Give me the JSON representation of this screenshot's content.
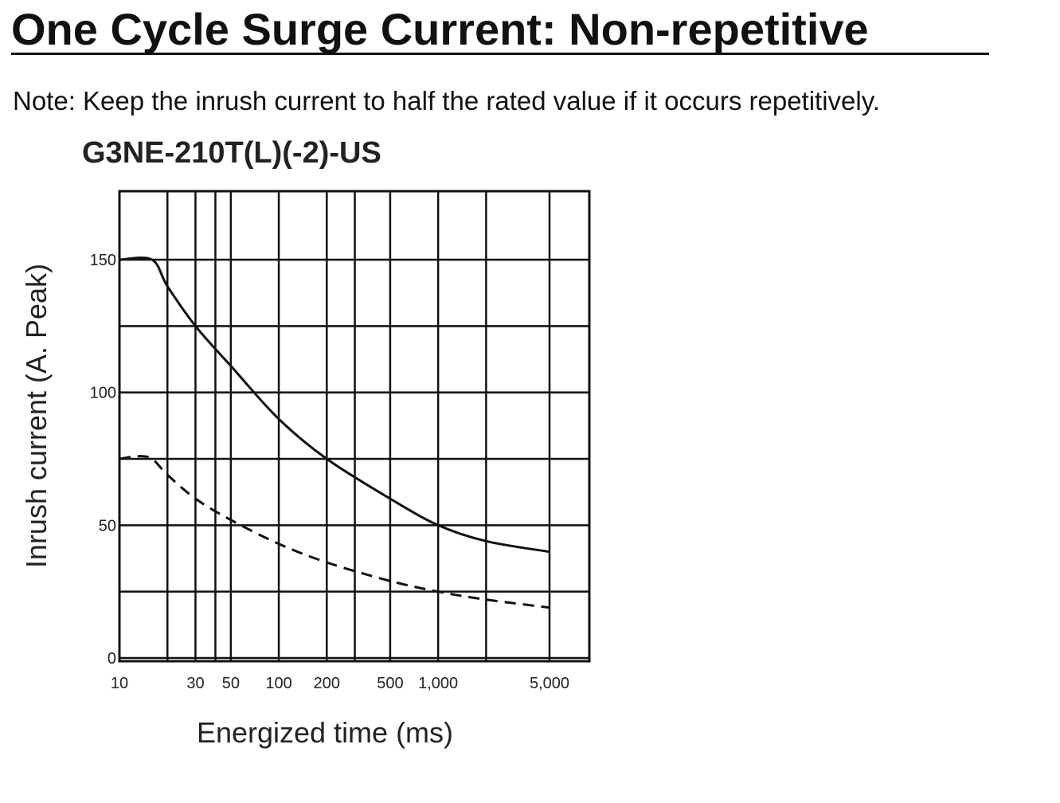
{
  "page": {
    "heading": "One Cycle Surge Current: Non-repetitive",
    "note": "Note: Keep the inrush current to half the rated value if it occurs repetitively."
  },
  "chart_data": {
    "type": "line",
    "title": "G3NE-210T(L)(-2)-US",
    "xlabel": "Energized time (ms)",
    "ylabel": "Inrush current (A. Peak)",
    "x_scale": "log",
    "xlim": [
      10,
      5000
    ],
    "ylim": [
      0,
      150
    ],
    "x_ticks": [
      {
        "value": 10,
        "label": "10"
      },
      {
        "value": 30,
        "label": "30"
      },
      {
        "value": 50,
        "label": "50"
      },
      {
        "value": 100,
        "label": "100"
      },
      {
        "value": 200,
        "label": "200"
      },
      {
        "value": 500,
        "label": "500"
      },
      {
        "value": 1000,
        "label": "1,000"
      },
      {
        "value": 5000,
        "label": "5,000"
      }
    ],
    "y_ticks": [
      {
        "value": 0,
        "label": "0"
      },
      {
        "value": 50,
        "label": "50"
      },
      {
        "value": 100,
        "label": "100"
      },
      {
        "value": 150,
        "label": "150"
      }
    ],
    "x_gridlines": [
      10,
      20,
      30,
      40,
      50,
      100,
      200,
      300,
      500,
      1000,
      2000,
      5000
    ],
    "y_gridlines": [
      0,
      25,
      50,
      75,
      100,
      125,
      150
    ],
    "grid": true,
    "series": [
      {
        "style": "solid",
        "x": [
          10,
          16,
          20,
          30,
          50,
          100,
          200,
          500,
          1000,
          2000,
          5000
        ],
        "y": [
          150,
          150,
          140,
          125,
          110,
          90,
          75,
          60,
          50,
          44,
          40
        ]
      },
      {
        "style": "dashed",
        "x": [
          10,
          13,
          16,
          20,
          30,
          50,
          100,
          200,
          500,
          1000,
          2000,
          5000
        ],
        "y": [
          75,
          76,
          75,
          69,
          60,
          52,
          43,
          36,
          29,
          25,
          22,
          19
        ]
      }
    ]
  }
}
